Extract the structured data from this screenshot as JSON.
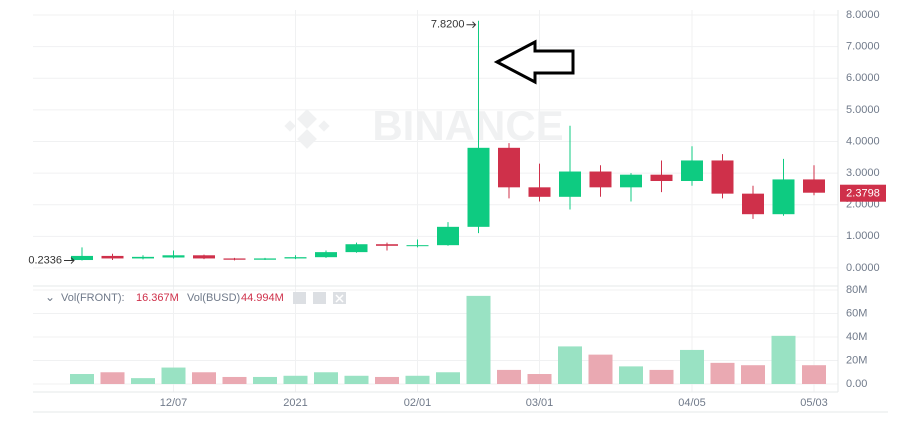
{
  "chart_data": {
    "type": "candlestick",
    "watermark": "BINANCE",
    "categories": [
      null,
      null,
      null,
      "12/07",
      null,
      null,
      null,
      "2021",
      null,
      null,
      null,
      "02/01",
      null,
      null,
      null,
      "03/01",
      null,
      null,
      null,
      null,
      "04/05",
      null,
      null,
      null,
      "05/03"
    ],
    "open": [
      0.25,
      0.38,
      0.3,
      0.33,
      0.4,
      0.3,
      0.26,
      0.3,
      0.34,
      0.5,
      0.75,
      0.7,
      0.72,
      1.3,
      3.8,
      2.55,
      2.25,
      3.05,
      2.55,
      2.95,
      2.75,
      3.4,
      2.35,
      1.7,
      2.8
    ],
    "high": [
      0.65,
      0.45,
      0.4,
      0.55,
      0.42,
      0.32,
      0.32,
      0.4,
      0.55,
      0.8,
      0.8,
      0.9,
      1.45,
      7.82,
      3.95,
      3.3,
      4.5,
      3.25,
      3.0,
      3.4,
      3.85,
      3.6,
      2.6,
      3.45,
      3.25
    ],
    "low": [
      0.2336,
      0.25,
      0.27,
      0.3,
      0.28,
      0.24,
      0.25,
      0.28,
      0.32,
      0.48,
      0.55,
      0.65,
      0.7,
      1.1,
      2.2,
      2.1,
      1.85,
      2.25,
      2.1,
      2.4,
      2.6,
      2.2,
      1.55,
      1.65,
      2.3
    ],
    "close": [
      0.38,
      0.3,
      0.35,
      0.4,
      0.3,
      0.26,
      0.3,
      0.34,
      0.5,
      0.75,
      0.7,
      0.72,
      1.3,
      3.8,
      2.55,
      2.25,
      3.05,
      2.55,
      2.95,
      2.75,
      3.4,
      2.35,
      1.7,
      2.8,
      2.3798
    ],
    "volume": [
      8.5,
      10,
      5,
      14,
      10,
      6,
      6,
      7,
      10,
      7,
      6,
      7,
      10,
      75,
      12,
      8.5,
      32,
      25,
      15,
      12,
      29,
      18,
      16,
      41,
      16
    ],
    "up_color": "#0ecb81",
    "down_color": "#cf304a",
    "volume_up_color": "#99e2c3",
    "volume_down_color": "#eaa9b2",
    "high_label": "7.8200",
    "low_label": "0.2336",
    "last_price_label": "2.3798",
    "ylim": [
      -0.54,
      8.16
    ],
    "yticks": [
      {
        "value": 0,
        "label": "0.0000"
      },
      {
        "value": 1,
        "label": "1.0000"
      },
      {
        "value": 2,
        "label": "2.0000"
      },
      {
        "value": 3,
        "label": "3.0000"
      },
      {
        "value": 4,
        "label": "4.0000"
      },
      {
        "value": 5,
        "label": "5.0000"
      },
      {
        "value": 6,
        "label": "6.0000"
      },
      {
        "value": 7,
        "label": "7.0000"
      },
      {
        "value": 8,
        "label": "8.0000"
      }
    ],
    "volume_ylim": [
      -6.8,
      81.7
    ],
    "volume_yticks": [
      {
        "value": 0,
        "label": "0.00"
      },
      {
        "value": 20,
        "label": "20M"
      },
      {
        "value": 40,
        "label": "40M"
      },
      {
        "value": 60,
        "label": "60M"
      },
      {
        "value": 80,
        "label": "80M"
      }
    ],
    "volume_legend": [
      {
        "name": "Vol(FRONT):",
        "value_label": "16.367M"
      },
      {
        "name": "Vol(BUSD)",
        "value_label": "44.994M"
      }
    ],
    "grid": true
  }
}
